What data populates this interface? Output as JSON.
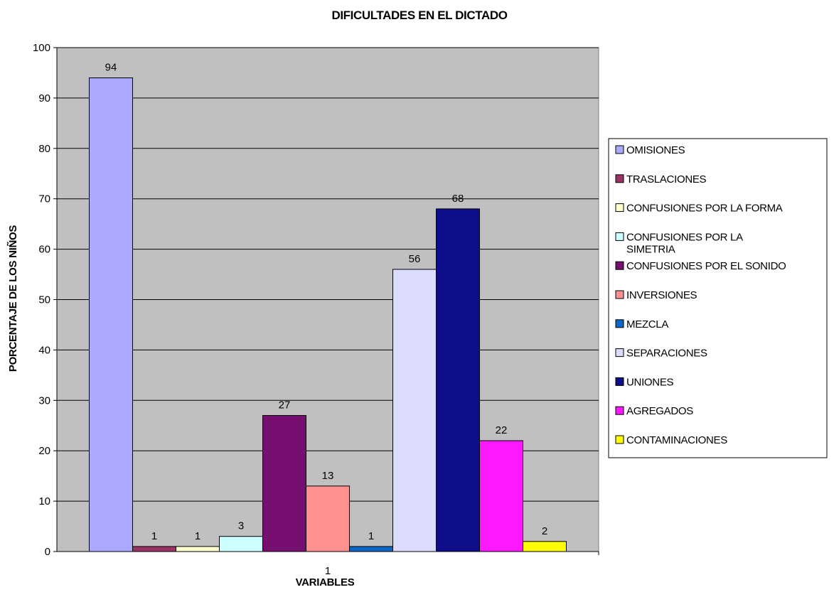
{
  "chart_data": {
    "type": "bar",
    "title": "DIFICULTADES EN EL DICTADO",
    "xlabel": "VARIABLES",
    "ylabel": "PORCENTAJE DE LOS NIÑOS",
    "categories": [
      "1"
    ],
    "ylim": [
      0,
      100
    ],
    "yticks": [
      0,
      10,
      20,
      30,
      40,
      50,
      60,
      70,
      80,
      90,
      100
    ],
    "grid": true,
    "legend_position": "right",
    "plot_background": "#c0c0c0",
    "series": [
      {
        "name": "OMISIONES",
        "values": [
          94
        ],
        "color": "#a9a9ff"
      },
      {
        "name": "TRASLACIONES",
        "values": [
          1
        ],
        "color": "#993366"
      },
      {
        "name": "CONFUSIONES POR LA FORMA",
        "values": [
          1
        ],
        "color": "#ffffcc"
      },
      {
        "name": "CONFUSIONES POR LA SIMETRIA",
        "values": [
          3
        ],
        "color": "#ccffff"
      },
      {
        "name": "CONFUSIONES POR EL SONIDO",
        "values": [
          27
        ],
        "color": "#760f6f"
      },
      {
        "name": "INVERSIONES",
        "values": [
          13
        ],
        "color": "#ff9090"
      },
      {
        "name": "MEZCLA",
        "values": [
          1
        ],
        "color": "#0b66c8"
      },
      {
        "name": "SEPARACIONES",
        "values": [
          56
        ],
        "color": "#dcdcff"
      },
      {
        "name": "UNIONES",
        "values": [
          68
        ],
        "color": "#0e0e8a"
      },
      {
        "name": "AGREGADOS",
        "values": [
          22
        ],
        "color": "#ff19ff"
      },
      {
        "name": "CONTAMINACIONES",
        "values": [
          2
        ],
        "color": "#ffff00"
      }
    ]
  }
}
